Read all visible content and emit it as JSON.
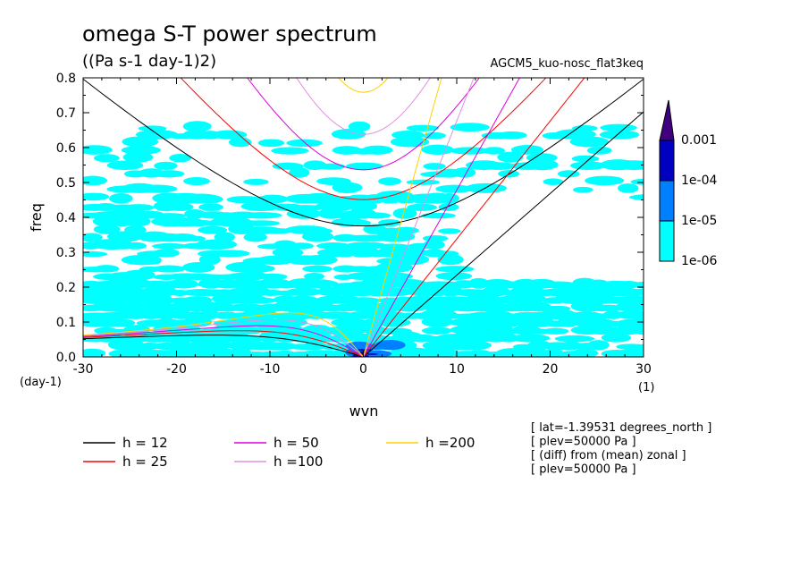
{
  "chart_data": {
    "type": "heatmap",
    "title": "omega S-T power spectrum",
    "subtitle": "((Pa s-1 day-1)2)",
    "run_label": "AGCM5_kuo-nosc_flat3keq",
    "xlabel": "wvn",
    "ylabel": "freq",
    "x_unit": "(1)",
    "y_unit": "(day-1)",
    "xlim": [
      -30,
      30
    ],
    "ylim": [
      0,
      0.8
    ],
    "x_ticks": [
      -30,
      -20,
      -10,
      0,
      10,
      20,
      30
    ],
    "x_tick_labels": [
      "-30",
      "-20",
      "-10",
      "0",
      "10",
      "20",
      "30"
    ],
    "y_ticks": [
      0,
      0.1,
      0.2,
      0.3,
      0.4,
      0.5,
      0.6,
      0.7,
      0.8
    ],
    "y_tick_labels": [
      "0.0",
      "0.1",
      "0.2",
      "0.3",
      "0.4",
      "0.5",
      "0.6",
      "0.7",
      "0.8"
    ],
    "colorbar": {
      "levels": [
        "1e-06",
        "1e-05",
        "1e-04",
        "0.001"
      ],
      "colors": [
        "#00ffff",
        "#0080ff",
        "#0000c0",
        "#400080"
      ]
    },
    "dispersion_curves": [
      {
        "name": "h = 12",
        "h": 12,
        "color": "#000000"
      },
      {
        "name": "h = 25",
        "h": 25,
        "color": "#ff0000"
      },
      {
        "name": "h = 50",
        "h": 50,
        "color": "#e000e0"
      },
      {
        "name": "h =100",
        "h": 100,
        "color": "#e090e0"
      },
      {
        "name": "h =200",
        "h": 200,
        "color": "#ffd000"
      }
    ],
    "power_regions": [
      {
        "x": [
          -30,
          30
        ],
        "y": [
          0.0,
          0.2
        ],
        "level": "1e-06",
        "coverage": "dense"
      },
      {
        "x": [
          -30,
          10
        ],
        "y": [
          0.2,
          0.45
        ],
        "level": "1e-06",
        "coverage": "patchy"
      },
      {
        "x": [
          -30,
          30
        ],
        "y": [
          0.45,
          0.65
        ],
        "level": "1e-06",
        "coverage": "sparse"
      },
      {
        "x": [
          -3,
          3
        ],
        "y": [
          0.0,
          0.04
        ],
        "level": "1e-05",
        "coverage": "patchy"
      },
      {
        "x": [
          -1,
          1
        ],
        "y": [
          0.0,
          0.02
        ],
        "level": "1e-04",
        "coverage": "spots"
      }
    ]
  },
  "info_notes": [
    "[ lat=-1.39531 degrees_north ]",
    "[ plev=50000 Pa ]",
    "[ (diff) from (mean) zonal ]",
    "[ plev=50000 Pa ]"
  ]
}
